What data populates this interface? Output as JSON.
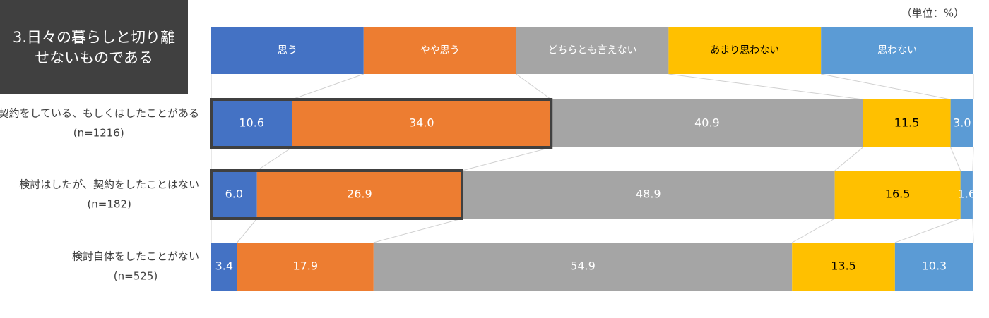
{
  "chart_data": {
    "type": "stacked-bar-horizontal-100",
    "title": [
      "3.日々の暮らしと切り離",
      "せないものである"
    ],
    "unit_label": "（単位：%）",
    "categories": [
      "契約をしている、もしくはしたことがある",
      "検討はしたが、契約をしたことはない",
      "検討自体をしたことがない"
    ],
    "sample_sizes": [
      "(n=1216)",
      "(n=182)",
      "(n=525)"
    ],
    "series": [
      {
        "name": "思う",
        "color": "#4472c4",
        "label_color": "#ffffff",
        "values": [
          10.6,
          6.0,
          3.4
        ],
        "value_labels": [
          "10.6",
          "6.0",
          "3.4"
        ]
      },
      {
        "name": "やや思う",
        "color": "#ed7d31",
        "label_color": "#ffffff",
        "values": [
          34.0,
          26.9,
          17.9
        ],
        "value_labels": [
          "34.0",
          "26.9",
          "17.9"
        ]
      },
      {
        "name": "どちらとも言えない",
        "color": "#a5a5a5",
        "label_color": "#ffffff",
        "values": [
          40.9,
          48.9,
          54.9
        ],
        "value_labels": [
          "40.9",
          "48.9",
          "54.9"
        ]
      },
      {
        "name": "あまり思わない",
        "color": "#ffc000",
        "label_color": "#000000",
        "values": [
          11.5,
          16.5,
          13.5
        ],
        "value_labels": [
          "11.5",
          "16.5",
          "13.5"
        ]
      },
      {
        "name": "思わない",
        "color": "#5b9bd5",
        "label_color": "#ffffff",
        "values": [
          3.0,
          1.6,
          10.3
        ],
        "value_labels": [
          "3.0",
          "1.6",
          "10.3"
        ]
      }
    ],
    "xlim": [
      0,
      100
    ],
    "highlight": {
      "rows": [
        0,
        1
      ],
      "series": [
        0,
        1
      ]
    }
  }
}
